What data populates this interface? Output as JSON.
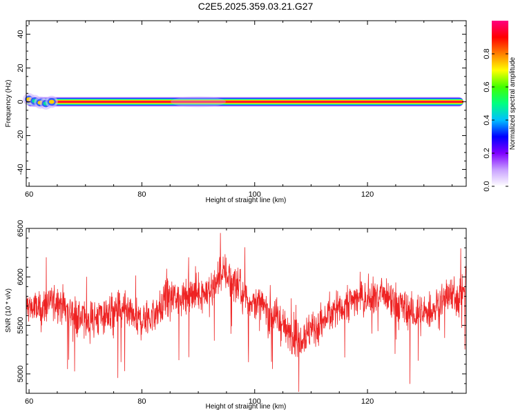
{
  "title": "C2E5.2025.359.03.21.G27",
  "colors": {
    "snr_line": "#ee2222",
    "axis": "#000000",
    "spectrum_core": "#e8001c",
    "spectrum_halo": "#a040ff"
  },
  "chart_data": [
    {
      "type": "heatmap",
      "xlabel": "Height of straight line (km)",
      "ylabel": "Frequency (Hz)",
      "xlim": [
        59.5,
        137.5
      ],
      "ylim": [
        -50,
        48
      ],
      "xticks": [
        60,
        80,
        100,
        120
      ],
      "yticks": [
        40,
        20,
        0,
        -20,
        -40
      ],
      "grid": false,
      "ridge": {
        "frequency_hz": 0,
        "x_start": 59.5,
        "x_end": 137,
        "half_width_hz": 2,
        "initial_wiggle": [
          {
            "x": 60.0,
            "y": 1.5
          },
          {
            "x": 61.0,
            "y": 0.5
          },
          {
            "x": 62.0,
            "y": -0.5
          },
          {
            "x": 63.0,
            "y": -1.0
          },
          {
            "x": 64.0,
            "y": 0.0
          }
        ]
      },
      "colorbar": {
        "label": "Normalized spectral amplitude",
        "range": [
          0,
          1
        ],
        "ticks": [
          "0.0",
          "0.2",
          "0.4",
          "0.6",
          "0.8"
        ],
        "stops": [
          "#ffffff",
          "#c8a0ff",
          "#8000ff",
          "#0000ff",
          "#00c0ff",
          "#00ff80",
          "#40ff00",
          "#ffff00",
          "#ff8000",
          "#ff0000",
          "#ff0080"
        ]
      }
    },
    {
      "type": "line",
      "xlabel": "Height of straight line (km)",
      "ylabel": "SNR (10 * v/v)",
      "xlim": [
        59.5,
        137.5
      ],
      "ylim": [
        4800,
        6500
      ],
      "xticks": [
        60,
        80,
        100,
        120
      ],
      "yticks": [
        6500,
        6000,
        5500,
        5000
      ],
      "grid": false,
      "series": [
        {
          "x": [
            60,
            62,
            64,
            66,
            68,
            70,
            72,
            74,
            76,
            78,
            80,
            82,
            84,
            86,
            88,
            90,
            92,
            94,
            96,
            98,
            100,
            102,
            104,
            106,
            108,
            110,
            112,
            114,
            116,
            118,
            120,
            122,
            124,
            126,
            128,
            130,
            132,
            134,
            136,
            137
          ],
          "values": [
            5700,
            5650,
            5760,
            5720,
            5610,
            5550,
            5580,
            5620,
            5660,
            5580,
            5550,
            5600,
            5720,
            5800,
            5780,
            5850,
            5830,
            6050,
            5980,
            5800,
            5720,
            5680,
            5580,
            5420,
            5380,
            5450,
            5530,
            5650,
            5720,
            5780,
            5760,
            5830,
            5740,
            5690,
            5620,
            5610,
            5690,
            5810,
            5790,
            5880
          ],
          "noise": 180
        }
      ]
    }
  ]
}
